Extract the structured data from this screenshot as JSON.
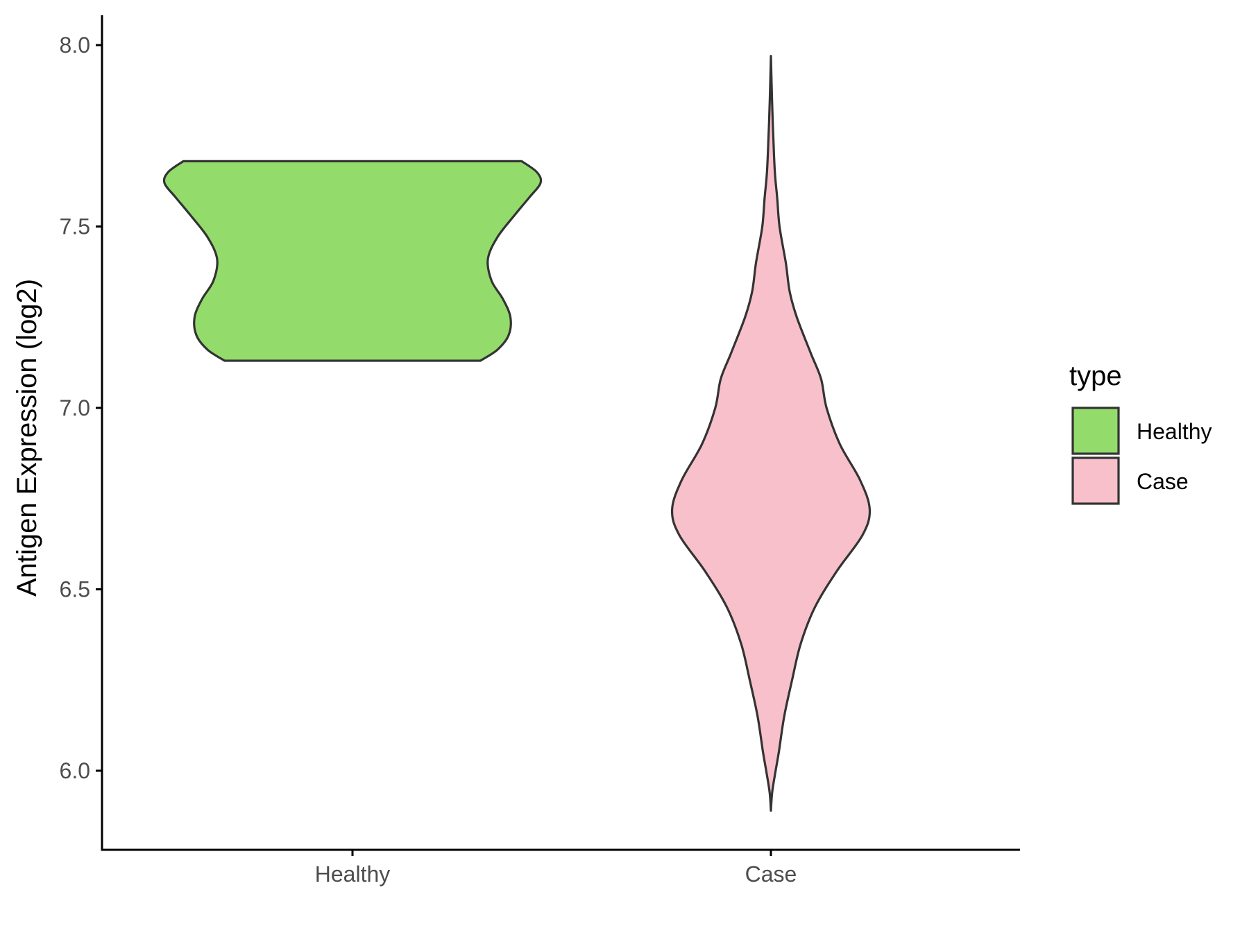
{
  "chart_data": {
    "type": "violin",
    "title": "",
    "xlabel": "",
    "ylabel": "Antigen Expression (log2)",
    "ylim": [
      5.77,
      8.08
    ],
    "y_ticks": [
      "6.0",
      "6.5",
      "7.0",
      "7.5",
      "8.0"
    ],
    "grid": false,
    "categories": [
      "Healthy",
      "Case"
    ],
    "legend": {
      "title": "type",
      "position": "right",
      "entries": [
        "Healthy",
        "Case"
      ]
    },
    "colors": {
      "Healthy": "#93dc6b",
      "Case": "#f7c0cb",
      "outline": "#333333",
      "axis": "#000000"
    },
    "series": [
      {
        "name": "Healthy",
        "y_min": 7.13,
        "y_max": 7.68,
        "density_profile": [
          [
            7.13,
            0.68
          ],
          [
            7.16,
            0.77
          ],
          [
            7.2,
            0.83
          ],
          [
            7.25,
            0.84
          ],
          [
            7.3,
            0.8
          ],
          [
            7.35,
            0.74
          ],
          [
            7.41,
            0.72
          ],
          [
            7.47,
            0.77
          ],
          [
            7.53,
            0.86
          ],
          [
            7.58,
            0.94
          ],
          [
            7.62,
            1.0
          ],
          [
            7.65,
            0.98
          ],
          [
            7.68,
            0.9
          ]
        ]
      },
      {
        "name": "Case",
        "y_min": 5.89,
        "y_max": 7.97,
        "density_profile": [
          [
            5.89,
            0.0
          ],
          [
            5.94,
            0.008
          ],
          [
            6.0,
            0.03
          ],
          [
            6.05,
            0.05
          ],
          [
            6.15,
            0.085
          ],
          [
            6.25,
            0.135
          ],
          [
            6.35,
            0.19
          ],
          [
            6.45,
            0.28
          ],
          [
            6.55,
            0.42
          ],
          [
            6.65,
            0.585
          ],
          [
            6.72,
            0.63
          ],
          [
            6.8,
            0.57
          ],
          [
            6.9,
            0.44
          ],
          [
            7.0,
            0.355
          ],
          [
            7.08,
            0.32
          ],
          [
            7.15,
            0.255
          ],
          [
            7.25,
            0.165
          ],
          [
            7.32,
            0.12
          ],
          [
            7.4,
            0.095
          ],
          [
            7.5,
            0.055
          ],
          [
            7.58,
            0.04
          ],
          [
            7.65,
            0.025
          ],
          [
            7.75,
            0.015
          ],
          [
            7.85,
            0.007
          ],
          [
            7.97,
            0.0
          ]
        ]
      }
    ]
  }
}
